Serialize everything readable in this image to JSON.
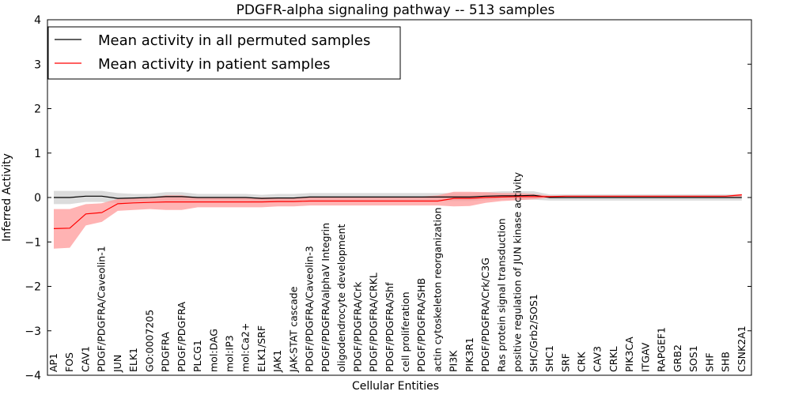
{
  "chart_data": {
    "type": "line",
    "title": "PDGFR-alpha signaling pathway -- 513 samples",
    "xlabel": "Cellular Entities",
    "ylabel": "Inferred Activity",
    "ylim": [
      -4,
      4
    ],
    "yticks": [
      4,
      3,
      2,
      1,
      0,
      -1,
      -2,
      -3,
      -4
    ],
    "ytick_labels": [
      "4",
      "3",
      "2",
      "1",
      "0",
      "−1",
      "−2",
      "−3",
      "−4"
    ],
    "legend_position": "top-left",
    "categories": [
      "AP1",
      "FOS",
      "CAV1",
      "PDGF/PDGFRA/Caveolin-1",
      "JUN",
      "ELK1",
      "GO:0007205",
      "PDGFRA",
      "PDGF/PDGFRA",
      "PLCG1",
      "mol:DAG",
      "mol:IP3",
      "mol:Ca2+",
      "ELK1/SRF",
      "JAK1",
      "JAK-STAT cascade",
      "PDGF/PDGFRA/Caveolin-3",
      "PDGF/PDGFRA/alphaV Integrin",
      "oligodendrocyte development",
      "PDGF/PDGFRA/Crk",
      "PDGF/PDGFRA/CRKL",
      "PDGF/PDGFRA/Shf",
      "cell proliferation",
      "PDGF/PDGFRA/SHB",
      "actin cytoskeleton reorganization",
      "PI3K",
      "PIK3R1",
      "PDGF/PDGFRA/Crk/C3G",
      "Ras protein signal transduction",
      "positive regulation of JUN kinase activity",
      "SHC/Grb2/SOS1",
      "SHC1",
      "SRF",
      "CRK",
      "CAV3",
      "CRKL",
      "PIK3CA",
      "ITGAV",
      "RAPGEF1",
      "GRB2",
      "SOS1",
      "SHF",
      "SHB",
      "CSNK2A1"
    ],
    "series": [
      {
        "name": "Mean activity in all permuted samples",
        "color": "#000000",
        "band_color": "#bfbfbf",
        "values": [
          0.0,
          0.0,
          0.03,
          0.03,
          -0.02,
          -0.01,
          0.0,
          0.02,
          0.02,
          0.0,
          0.0,
          0.0,
          0.0,
          -0.02,
          -0.01,
          -0.01,
          0.01,
          0.01,
          0.01,
          0.01,
          0.01,
          0.01,
          0.01,
          0.01,
          0.01,
          0.01,
          0.01,
          0.03,
          0.04,
          0.04,
          0.05,
          0.0,
          0.0,
          0.0,
          0.0,
          0.0,
          0.0,
          0.0,
          0.0,
          0.0,
          0.0,
          0.0,
          0.0,
          0.0
        ],
        "upper": [
          0.15,
          0.15,
          0.15,
          0.15,
          0.1,
          0.08,
          0.08,
          0.12,
          0.12,
          0.08,
          0.08,
          0.08,
          0.08,
          0.06,
          0.08,
          0.08,
          0.1,
          0.1,
          0.1,
          0.1,
          0.1,
          0.1,
          0.1,
          0.1,
          0.1,
          0.1,
          0.1,
          0.12,
          0.14,
          0.14,
          0.14,
          0.07,
          0.07,
          0.07,
          0.07,
          0.07,
          0.07,
          0.07,
          0.07,
          0.07,
          0.07,
          0.07,
          0.07,
          0.07
        ],
        "lower": [
          -0.15,
          -0.15,
          -0.1,
          -0.1,
          -0.13,
          -0.1,
          -0.08,
          -0.08,
          -0.08,
          -0.08,
          -0.08,
          -0.08,
          -0.08,
          -0.1,
          -0.1,
          -0.1,
          -0.08,
          -0.08,
          -0.08,
          -0.08,
          -0.08,
          -0.08,
          -0.08,
          -0.08,
          -0.08,
          -0.08,
          -0.08,
          -0.06,
          -0.05,
          -0.05,
          -0.05,
          -0.07,
          -0.07,
          -0.07,
          -0.07,
          -0.07,
          -0.07,
          -0.07,
          -0.07,
          -0.07,
          -0.07,
          -0.07,
          -0.07,
          -0.07
        ]
      },
      {
        "name": "Mean activity in patient samples",
        "color": "#ff0000",
        "band_color": "#ff9999",
        "values": [
          -0.7,
          -0.69,
          -0.37,
          -0.34,
          -0.14,
          -0.12,
          -0.11,
          -0.1,
          -0.1,
          -0.1,
          -0.1,
          -0.1,
          -0.1,
          -0.1,
          -0.09,
          -0.09,
          -0.08,
          -0.08,
          -0.08,
          -0.08,
          -0.08,
          -0.08,
          -0.08,
          -0.08,
          -0.08,
          -0.02,
          -0.02,
          0.0,
          0.01,
          0.02,
          0.02,
          0.02,
          0.03,
          0.03,
          0.03,
          0.03,
          0.03,
          0.03,
          0.03,
          0.03,
          0.03,
          0.03,
          0.03,
          0.06
        ],
        "upper": [
          -0.26,
          -0.26,
          -0.15,
          -0.13,
          -0.03,
          -0.02,
          -0.01,
          0.05,
          0.05,
          0.0,
          0.0,
          0.0,
          0.0,
          0.0,
          0.0,
          0.0,
          0.02,
          0.02,
          0.02,
          0.02,
          0.02,
          0.02,
          0.02,
          0.02,
          0.05,
          0.13,
          0.13,
          0.12,
          0.1,
          0.1,
          0.08,
          0.04,
          0.04,
          0.04,
          0.04,
          0.04,
          0.04,
          0.04,
          0.04,
          0.04,
          0.04,
          0.04,
          0.04,
          0.08
        ],
        "lower": [
          -1.15,
          -1.13,
          -0.63,
          -0.55,
          -0.3,
          -0.28,
          -0.26,
          -0.28,
          -0.28,
          -0.22,
          -0.22,
          -0.22,
          -0.22,
          -0.22,
          -0.2,
          -0.2,
          -0.18,
          -0.18,
          -0.18,
          -0.18,
          -0.18,
          -0.18,
          -0.18,
          -0.18,
          -0.18,
          -0.2,
          -0.19,
          -0.12,
          -0.08,
          -0.06,
          -0.04,
          0.0,
          0.01,
          0.01,
          0.01,
          0.01,
          0.01,
          0.01,
          0.01,
          0.01,
          0.01,
          0.01,
          0.01,
          0.02
        ]
      }
    ]
  }
}
